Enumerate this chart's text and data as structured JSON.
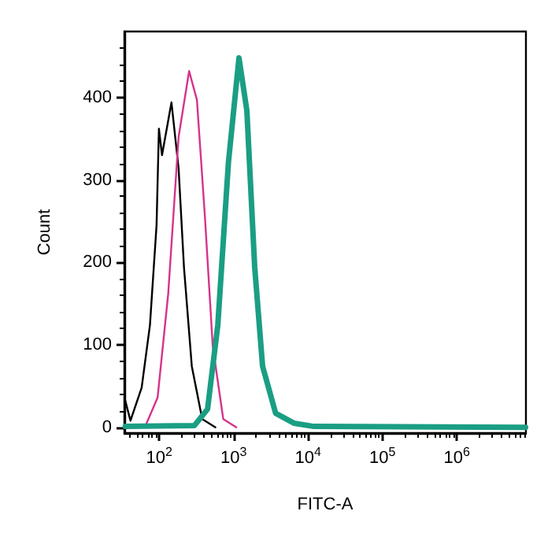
{
  "chart_data": {
    "type": "line",
    "xlabel": "FITC-A",
    "ylabel": "Count",
    "log": "x",
    "grid": false,
    "marker": "none",
    "xlim": [
      34,
      8500000
    ],
    "xticks": [
      {
        "value": 100,
        "label": "10$^{2}$"
      },
      {
        "value": 1000,
        "label": "10$^{3}$"
      },
      {
        "value": 10000,
        "label": "10$^{4}$"
      },
      {
        "value": 100000,
        "label": "10$^{5}$"
      },
      {
        "value": 1000000,
        "label": "10$^{6}$"
      }
    ],
    "ylim": [
      -7,
      480
    ],
    "yticks": [
      0,
      100,
      200,
      300,
      400
    ],
    "series": [
      {
        "color": "#000000",
        "x": [
          35,
          41,
          58,
          75,
          92,
          99,
          109,
          146,
          182,
          215,
          274,
          378,
          569
        ],
        "values": [
          32,
          8,
          48,
          124,
          245,
          362,
          330,
          394,
          314,
          194,
          74,
          10,
          0
        ]
      },
      {
        "color": "#d6338a",
        "x": [
          64,
          95,
          132,
          182,
          252,
          321,
          410,
          524,
          725,
          1087
        ],
        "values": [
          0,
          36,
          162,
          352,
          432,
          397,
          257,
          98,
          10,
          0
        ]
      },
      {
        "color": "#1a9e84",
        "x": [
          35,
          296,
          446,
          613,
          851,
          1180,
          1506,
          1920,
          2450,
          3670,
          6450,
          12000,
          8400000
        ],
        "values": [
          1,
          2,
          22,
          124,
          321,
          448,
          384,
          194,
          74,
          17,
          5,
          1,
          0
        ]
      }
    ]
  }
}
